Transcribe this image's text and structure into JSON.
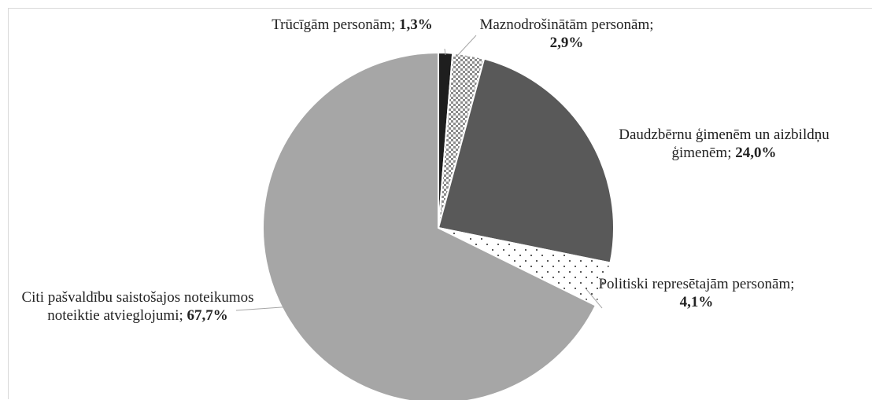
{
  "chart_data": {
    "type": "pie",
    "categories": [
      "Trūcīgām personām;",
      "Maznodrošinātām personām;",
      "Daudzbērnu ģimenēm un aizbildņu ģimenēm;",
      "Politiski represētajām personām;",
      "Citi pašvaldību saistošajos noteikumos noteiktie atvieglojumi;"
    ],
    "values": [
      1.3,
      2.9,
      24.0,
      4.1,
      67.7
    ],
    "value_labels": [
      "1,3%",
      "2,9%",
      "24,0%",
      "4,1%",
      "67,7%"
    ],
    "colors": [
      "#1e1e1e",
      "#8c8c8c",
      "#595959",
      "#ffffff",
      "#a6a6a6"
    ],
    "patterns": [
      null,
      "checker",
      null,
      "dots",
      null
    ]
  }
}
